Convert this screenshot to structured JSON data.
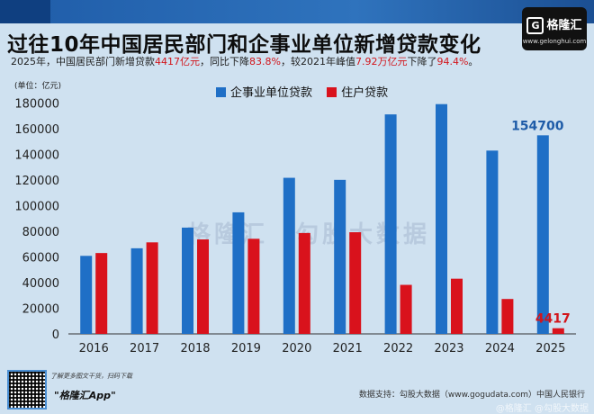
{
  "title": "过往10年中国居民部门和企事业单位新增贷款变化",
  "subtitle": {
    "part1": "2025年，中国居民部门新增贷款",
    "hl1": "4417亿元",
    "part2": "，同比下降",
    "hl2": "83.8%",
    "part3": "，较2021年峰值",
    "hl3": "7.92万亿元",
    "part4": "下降了",
    "hl4": "94.4%",
    "part5": "。"
  },
  "brand": {
    "logo_mark": "G",
    "logo_text": "格隆汇",
    "url": "www.gelonghui.com"
  },
  "watermark": "格隆汇　勾股大数据",
  "footer": {
    "promo": "了解更多图文干货，扫码下载",
    "app": "\"格隆汇App\"",
    "source": "数据支持：勾股大数据（www.gogudata.com）中国人民银行",
    "bottom_watermark": "@格隆汇 @勾股大数据"
  },
  "colors": {
    "corporate": "#1f6fc6",
    "household": "#d9121c",
    "axis_text": "#222222",
    "label_blue": "#1f5ca8",
    "label_red": "#d2151b"
  },
  "chart_data": {
    "type": "bar",
    "unit_label": "(单位：亿元)",
    "categories": [
      "2016",
      "2017",
      "2018",
      "2019",
      "2020",
      "2021",
      "2022",
      "2023",
      "2024",
      "2025"
    ],
    "series": [
      {
        "name": "企事业单位贷款",
        "values": [
          60800,
          66700,
          82800,
          94700,
          121600,
          120000,
          171000,
          179000,
          142800,
          154700
        ]
      },
      {
        "name": "住户贷款",
        "values": [
          63000,
          71300,
          73600,
          74100,
          78600,
          79200,
          38200,
          43000,
          27200,
          4417
        ]
      }
    ],
    "y_ticks": [
      0,
      20000,
      40000,
      60000,
      80000,
      100000,
      120000,
      140000,
      160000,
      180000
    ],
    "ylim": [
      0,
      190000
    ],
    "annotations": [
      {
        "text": "154700",
        "category": "2025",
        "series": "企事业单位贷款",
        "color": "#1f5ca8"
      },
      {
        "text": "4417",
        "category": "2025",
        "series": "住户贷款",
        "color": "#d2151b"
      }
    ],
    "legend_position": "top",
    "grid": false
  }
}
